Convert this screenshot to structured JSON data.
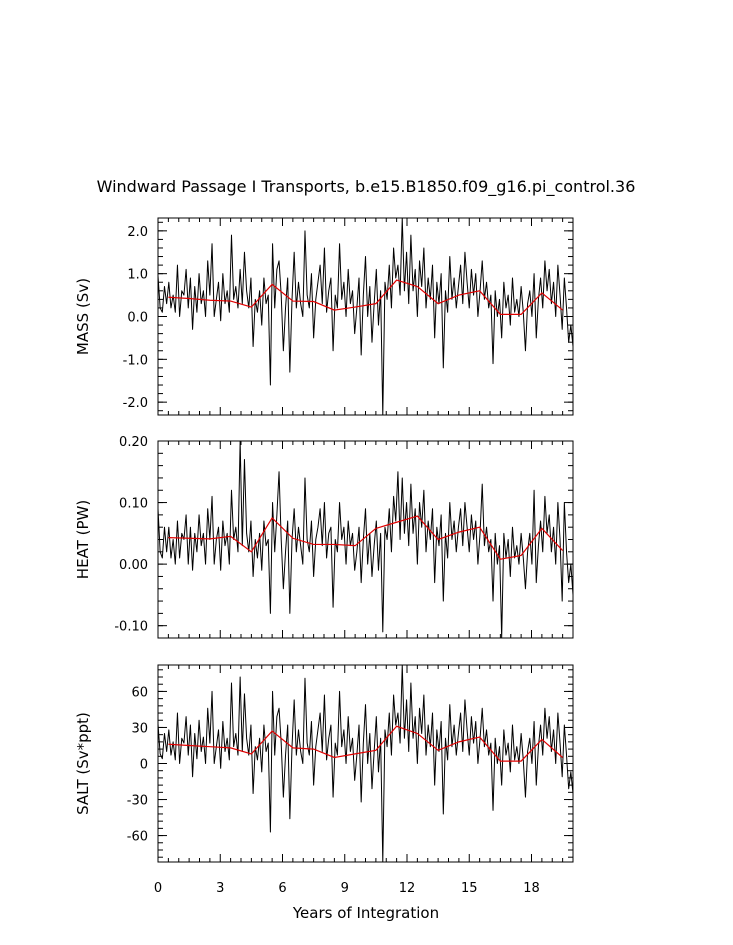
{
  "chart_data": {
    "type": "line",
    "title": "Windward Passage I Transports, b.e15.B1850.f09_g16.pi_control.36",
    "xlabel": "Years of Integration",
    "xlim": [
      0,
      20
    ],
    "xticks": [
      "0",
      "3",
      "6",
      "9",
      "12",
      "15",
      "18"
    ],
    "colors": {
      "raw": "#000000",
      "smooth": "#e00000",
      "axes": "#000000"
    },
    "panels": [
      {
        "name": "mass",
        "ylabel": "MASS (Sv)",
        "ylim": [
          -2.3,
          2.3
        ],
        "yticks": [
          "2.0",
          "1.0",
          "0.0",
          "-1.0",
          "-2.0"
        ],
        "ytick_values": [
          2.0,
          1.0,
          0.0,
          -1.0,
          -2.0
        ],
        "raw": [
          0.95,
          0.2,
          0.1,
          0.7,
          0.3,
          0.8,
          0.2,
          0.5,
          0.1,
          1.2,
          0.0,
          0.6,
          0.5,
          1.1,
          0.2,
          0.9,
          -0.3,
          0.7,
          0.1,
          1.0,
          0.3,
          0.6,
          0.0,
          1.3,
          0.5,
          1.7,
          0.0,
          0.4,
          0.8,
          -0.1,
          1.0,
          0.3,
          0.6,
          0.1,
          1.9,
          0.4,
          0.7,
          0.2,
          1.1,
          0.3,
          1.5,
          0.6,
          0.2,
          0.9,
          -0.7,
          0.4,
          0.1,
          0.6,
          -0.2,
          0.9,
          0.3,
          0.5,
          -1.6,
          1.7,
          0.2,
          1.1,
          1.3,
          0.5,
          -0.8,
          0.2,
          0.9,
          -1.3,
          0.4,
          1.5,
          0.2,
          0.8,
          0.3,
          0.0,
          2.0,
          0.5,
          0.2,
          1.0,
          -0.5,
          0.4,
          0.8,
          1.2,
          0.3,
          1.6,
          0.1,
          0.6,
          0.9,
          -0.8,
          0.5,
          0.2,
          1.7,
          0.4,
          0.8,
          0.0,
          1.1,
          0.3,
          0.6,
          -0.4,
          0.2,
          0.9,
          -0.9,
          0.5,
          1.4,
          0.0,
          0.7,
          -0.6,
          0.3,
          1.1,
          -0.2,
          0.6,
          -2.3,
          0.8,
          0.4,
          1.2,
          0.2,
          1.6,
          0.9,
          1.2,
          0.5,
          2.3,
          0.6,
          1.5,
          0.3,
          1.9,
          0.6,
          1.1,
          0.0,
          1.3,
          0.7,
          1.6,
          0.2,
          0.9,
          0.4,
          1.2,
          -0.5,
          0.8,
          0.3,
          1.0,
          -1.2,
          0.6,
          0.1,
          1.4,
          0.4,
          0.9,
          0.2,
          0.7,
          1.2,
          0.3,
          1.5,
          0.8,
          0.2,
          1.1,
          0.5,
          1.0,
          0.0,
          0.6,
          1.3,
          0.4,
          0.8,
          0.2,
          0.5,
          -1.1,
          0.6,
          0.0,
          0.4,
          -0.5,
          0.8,
          0.2,
          0.5,
          -0.2,
          0.9,
          0.1,
          0.4,
          0.0,
          0.7,
          0.1,
          -0.8,
          0.3,
          0.6,
          0.0,
          1.0,
          -0.5,
          0.4,
          0.9,
          0.2,
          1.3,
          0.6,
          1.1,
          0.3,
          0.8,
          0.0,
          1.2,
          0.5,
          -0.3,
          0.9,
          0.2,
          -0.6,
          -0.2,
          -0.7
        ],
        "smooth": {
          "x": [
            0.5,
            1.5,
            2.5,
            3.5,
            4.5,
            5.5,
            6.5,
            7.5,
            8.5,
            9.5,
            10.5,
            11.5,
            12.5,
            13.5,
            14.5,
            15.5,
            16.5,
            17.5,
            18.5,
            19.5
          ],
          "y": [
            0.45,
            0.42,
            0.38,
            0.36,
            0.22,
            0.75,
            0.36,
            0.35,
            0.15,
            0.22,
            0.3,
            0.85,
            0.7,
            0.3,
            0.5,
            0.6,
            0.05,
            0.05,
            0.55,
            0.15
          ]
        }
      },
      {
        "name": "heat",
        "ylabel": "HEAT (PW)",
        "ylim": [
          -0.12,
          0.2
        ],
        "yticks": [
          "0.20",
          "0.10",
          "0.00",
          "-0.10"
        ],
        "ytick_values": [
          0.2,
          0.1,
          0.0,
          -0.1
        ],
        "raw": [
          0.09,
          0.02,
          0.01,
          0.06,
          0.02,
          0.06,
          0.01,
          0.04,
          0.0,
          0.07,
          0.01,
          0.05,
          0.04,
          0.08,
          0.0,
          0.06,
          -0.01,
          0.05,
          0.02,
          0.08,
          0.03,
          0.05,
          0.0,
          0.09,
          0.04,
          0.11,
          0.0,
          0.04,
          0.06,
          -0.01,
          0.07,
          0.03,
          0.05,
          0.0,
          0.12,
          0.04,
          0.06,
          0.02,
          0.2,
          0.03,
          0.17,
          0.05,
          0.02,
          0.07,
          -0.02,
          0.04,
          0.01,
          0.05,
          -0.01,
          0.07,
          0.03,
          0.04,
          -0.08,
          0.1,
          0.02,
          0.08,
          0.15,
          0.04,
          -0.04,
          0.02,
          0.07,
          -0.08,
          0.04,
          0.09,
          0.02,
          0.06,
          0.03,
          0.0,
          0.14,
          0.04,
          0.02,
          0.07,
          -0.02,
          0.04,
          0.06,
          0.09,
          0.03,
          0.1,
          0.01,
          0.05,
          0.06,
          -0.07,
          0.04,
          0.02,
          0.1,
          0.04,
          0.06,
          0.0,
          0.07,
          0.03,
          0.05,
          -0.01,
          0.02,
          0.06,
          -0.03,
          0.04,
          0.09,
          0.0,
          0.05,
          -0.02,
          0.03,
          0.07,
          -0.01,
          0.05,
          -0.11,
          0.06,
          0.04,
          0.09,
          0.02,
          0.11,
          0.07,
          0.15,
          0.04,
          0.14,
          0.05,
          0.1,
          0.03,
          0.13,
          0.05,
          0.09,
          0.0,
          0.1,
          0.06,
          0.12,
          0.02,
          0.07,
          0.04,
          0.09,
          -0.03,
          0.06,
          0.03,
          0.08,
          -0.06,
          0.05,
          0.01,
          0.1,
          0.04,
          0.07,
          0.02,
          0.06,
          0.09,
          0.03,
          0.1,
          0.06,
          0.02,
          0.08,
          0.04,
          0.07,
          0.0,
          0.05,
          0.13,
          0.03,
          0.06,
          0.02,
          0.04,
          -0.06,
          0.05,
          0.0,
          0.03,
          -0.12,
          0.05,
          0.01,
          0.04,
          -0.02,
          0.06,
          0.01,
          0.03,
          0.0,
          0.05,
          0.01,
          -0.04,
          0.02,
          0.05,
          0.0,
          0.12,
          -0.03,
          0.03,
          0.07,
          0.02,
          0.11,
          0.05,
          0.08,
          0.02,
          0.06,
          0.0,
          0.1,
          0.04,
          -0.06,
          0.1,
          0.02,
          -0.03,
          0.0,
          -0.05
        ],
        "smooth": {
          "x": [
            0.5,
            1.5,
            2.5,
            3.5,
            4.5,
            5.5,
            6.5,
            7.5,
            8.5,
            9.5,
            10.5,
            11.5,
            12.5,
            13.5,
            14.5,
            15.5,
            16.5,
            17.5,
            18.5,
            19.5
          ],
          "y": [
            0.043,
            0.042,
            0.041,
            0.045,
            0.02,
            0.075,
            0.042,
            0.032,
            0.032,
            0.03,
            0.058,
            0.068,
            0.078,
            0.04,
            0.052,
            0.06,
            0.008,
            0.014,
            0.058,
            0.022
          ]
        }
      },
      {
        "name": "salt",
        "ylabel": "SALT (Sv*ppt)",
        "ylim": [
          -82,
          82
        ],
        "yticks": [
          "60",
          "30",
          "0",
          "-30",
          "-60"
        ],
        "ytick_values": [
          60,
          30,
          0,
          -30,
          -60
        ],
        "raw": [
          33,
          8,
          4,
          25,
          10,
          28,
          7,
          18,
          3,
          42,
          0,
          21,
          17,
          39,
          7,
          32,
          -11,
          25,
          4,
          36,
          10,
          22,
          0,
          46,
          17,
          60,
          0,
          14,
          28,
          -4,
          35,
          10,
          21,
          3,
          67,
          14,
          25,
          7,
          72,
          10,
          58,
          21,
          7,
          32,
          -25,
          14,
          3,
          21,
          -7,
          32,
          10,
          17,
          -57,
          60,
          7,
          39,
          46,
          17,
          -28,
          7,
          32,
          -46,
          14,
          53,
          7,
          28,
          10,
          0,
          71,
          17,
          7,
          35,
          -18,
          14,
          28,
          42,
          10,
          57,
          3,
          21,
          32,
          -28,
          17,
          7,
          60,
          14,
          28,
          0,
          39,
          10,
          21,
          -14,
          7,
          32,
          -32,
          17,
          49,
          0,
          25,
          -21,
          10,
          39,
          -7,
          21,
          -82,
          28,
          14,
          42,
          7,
          57,
          32,
          42,
          17,
          82,
          21,
          53,
          10,
          67,
          21,
          39,
          0,
          46,
          25,
          57,
          7,
          32,
          14,
          42,
          -18,
          28,
          10,
          35,
          -42,
          21,
          3,
          49,
          14,
          32,
          7,
          25,
          42,
          10,
          53,
          28,
          7,
          39,
          17,
          35,
          0,
          21,
          46,
          14,
          28,
          7,
          17,
          -39,
          21,
          0,
          14,
          -18,
          28,
          7,
          17,
          -7,
          32,
          3,
          14,
          0,
          25,
          3,
          -28,
          10,
          21,
          0,
          35,
          -18,
          14,
          32,
          7,
          46,
          21,
          39,
          10,
          28,
          0,
          42,
          17,
          -11,
          32,
          7,
          -21,
          -7,
          -25
        ],
        "smooth": {
          "x": [
            0.5,
            1.5,
            2.5,
            3.5,
            4.5,
            5.5,
            6.5,
            7.5,
            8.5,
            9.5,
            10.5,
            11.5,
            12.5,
            13.5,
            14.5,
            15.5,
            16.5,
            17.5,
            18.5,
            19.5
          ],
          "y": [
            16,
            15,
            14,
            13,
            8,
            27,
            13,
            12,
            5,
            8,
            11,
            31,
            25,
            11,
            18,
            22,
            2,
            2,
            20,
            5
          ]
        }
      }
    ]
  }
}
